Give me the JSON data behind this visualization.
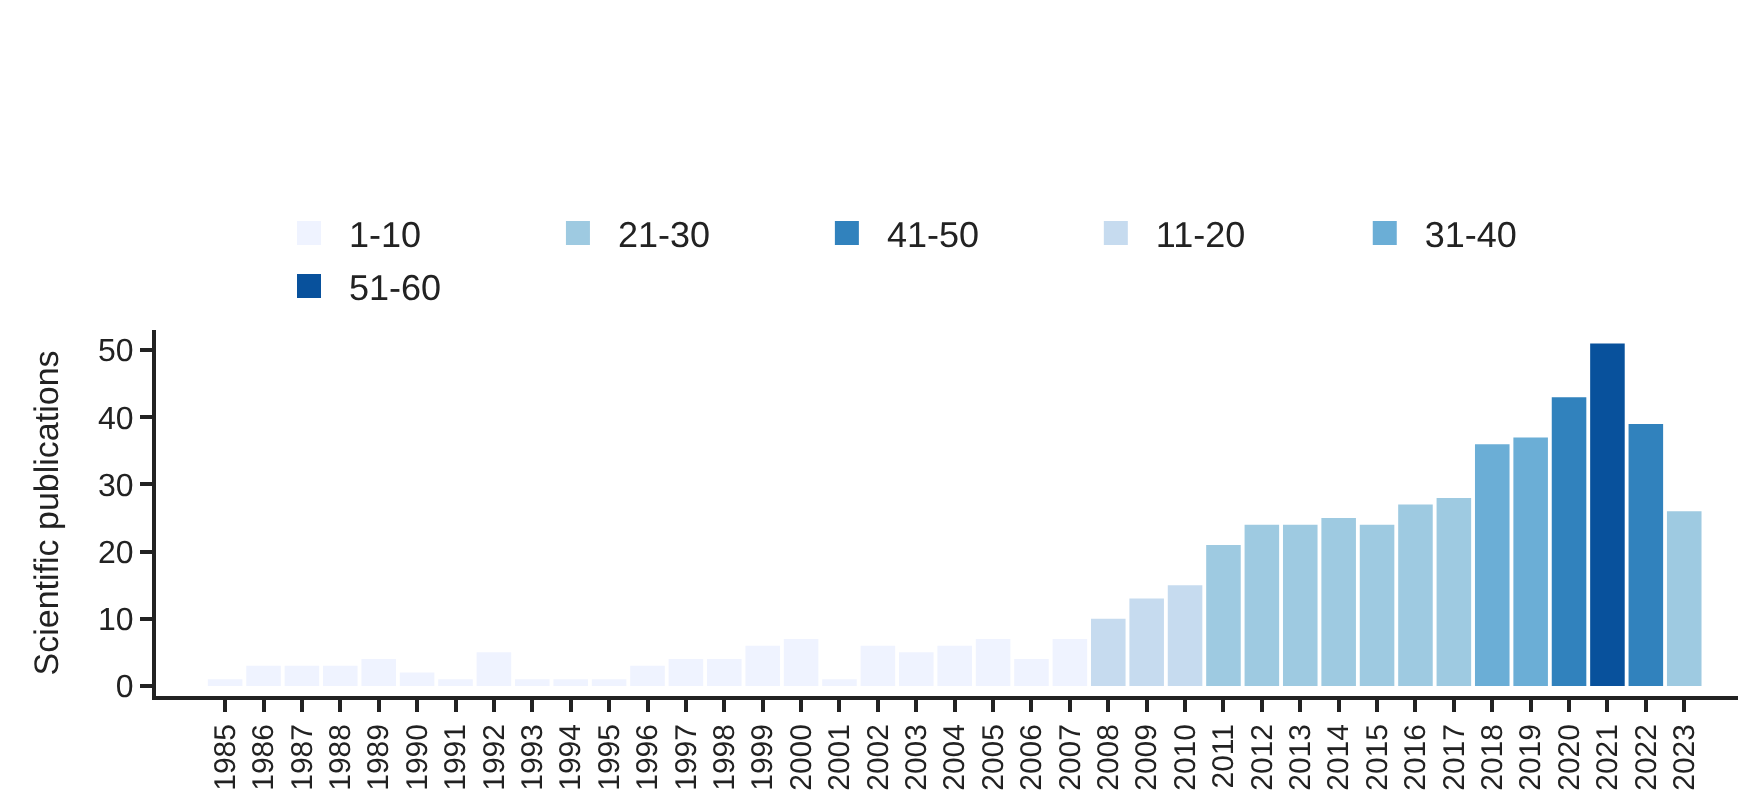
{
  "chart_data": {
    "type": "bar",
    "ylabel": "Scientific publications",
    "categories": [
      "1985",
      "1986",
      "1987",
      "1988",
      "1989",
      "1990",
      "1991",
      "1992",
      "1993",
      "1994",
      "1995",
      "1996",
      "1997",
      "1998",
      "1999",
      "2000",
      "2001",
      "2002",
      "2003",
      "2004",
      "2005",
      "2006",
      "2007",
      "2008",
      "2009",
      "2010",
      "2011",
      "2012",
      "2013",
      "2014",
      "2015",
      "2016",
      "2017",
      "2018",
      "2019",
      "2020",
      "2021",
      "2022",
      "2023"
    ],
    "series": [
      {
        "name": "1-10",
        "color": "#eff3ff",
        "values": [
          1,
          3,
          3,
          3,
          4,
          2,
          1,
          5,
          1,
          1,
          1,
          3,
          4,
          4,
          6,
          7,
          1,
          6,
          5,
          6,
          7,
          4,
          7,
          null,
          null,
          null,
          null,
          null,
          null,
          null,
          null,
          null,
          null,
          null,
          null,
          null,
          null,
          null,
          null
        ]
      },
      {
        "name": "21-30",
        "color": "#9ecae1",
        "values": [
          null,
          null,
          null,
          null,
          null,
          null,
          null,
          null,
          null,
          null,
          null,
          null,
          null,
          null,
          null,
          null,
          null,
          null,
          null,
          null,
          null,
          null,
          null,
          null,
          null,
          null,
          21,
          24,
          24,
          25,
          24,
          27,
          28,
          null,
          null,
          null,
          null,
          null,
          26
        ]
      },
      {
        "name": "41-50",
        "color": "#3182bd",
        "values": [
          null,
          null,
          null,
          null,
          null,
          null,
          null,
          null,
          null,
          null,
          null,
          null,
          null,
          null,
          null,
          null,
          null,
          null,
          null,
          null,
          null,
          null,
          null,
          null,
          null,
          null,
          null,
          null,
          null,
          null,
          null,
          null,
          null,
          null,
          null,
          43,
          null,
          39,
          null
        ]
      },
      {
        "name": "11-20",
        "color": "#c6dbef",
        "values": [
          null,
          null,
          null,
          null,
          null,
          null,
          null,
          null,
          null,
          null,
          null,
          null,
          null,
          null,
          null,
          null,
          null,
          null,
          null,
          null,
          null,
          null,
          null,
          10,
          13,
          15,
          null,
          null,
          null,
          null,
          null,
          null,
          null,
          null,
          null,
          null,
          null,
          null,
          null
        ]
      },
      {
        "name": "31-40",
        "color": "#6baed6",
        "values": [
          null,
          null,
          null,
          null,
          null,
          null,
          null,
          null,
          null,
          null,
          null,
          null,
          null,
          null,
          null,
          null,
          null,
          null,
          null,
          null,
          null,
          null,
          null,
          null,
          null,
          null,
          null,
          null,
          null,
          null,
          null,
          null,
          null,
          36,
          37,
          null,
          null,
          null,
          null
        ]
      },
      {
        "name": "51-60",
        "color": "#08519c",
        "values": [
          null,
          null,
          null,
          null,
          null,
          null,
          null,
          null,
          null,
          null,
          null,
          null,
          null,
          null,
          null,
          null,
          null,
          null,
          null,
          null,
          null,
          null,
          null,
          null,
          null,
          null,
          null,
          null,
          null,
          null,
          null,
          null,
          null,
          null,
          null,
          null,
          51,
          null,
          null
        ]
      }
    ],
    "ylim": [
      -1.5,
      53
    ],
    "yticks": [
      0,
      10,
      20,
      30,
      40,
      50
    ],
    "legend": "top"
  }
}
